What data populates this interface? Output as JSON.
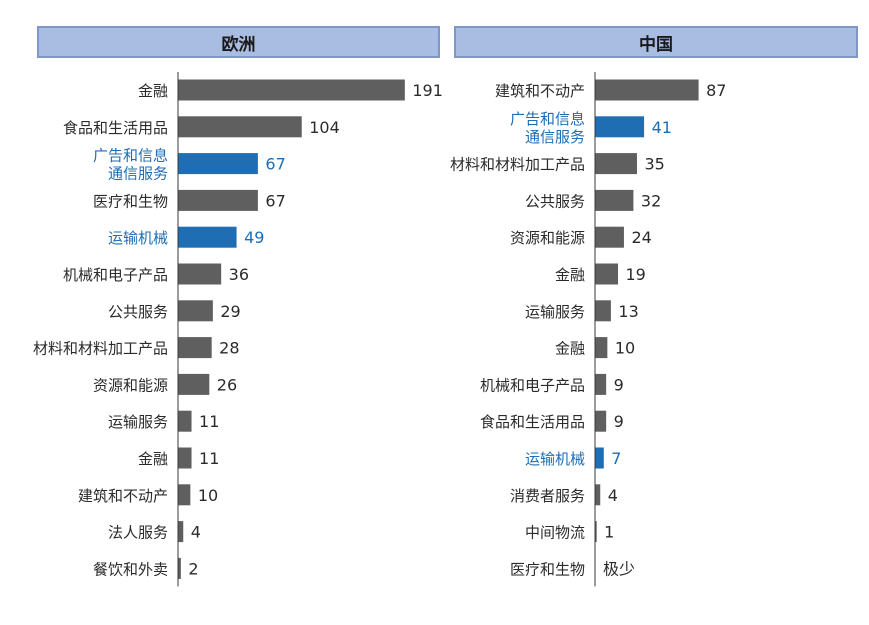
{
  "colors": {
    "bar": "#5f5f5f",
    "highlight": "#1f6db3",
    "text": "#2b2b2b",
    "header_bg": "#a9bde3",
    "header_border": "#7f97c8"
  },
  "chart_data": [
    {
      "type": "bar",
      "orientation": "horizontal",
      "title": "欧洲",
      "categories": [
        "金融",
        "食品和生活用品",
        "广告和信息\n通信服务",
        "医疗和生物",
        "运输机械",
        "机械和电子产品",
        "公共服务",
        "材料和材料加工产品",
        "资源和能源",
        "运输服务",
        "金融",
        "建筑和不动产",
        "法人服务",
        "餐饮和外卖"
      ],
      "values": [
        191,
        104,
        67,
        67,
        49,
        36,
        29,
        28,
        26,
        11,
        11,
        10,
        4,
        2
      ],
      "value_labels": [
        "191",
        "104",
        "67",
        "67",
        "49",
        "36",
        "29",
        "28",
        "26",
        "11",
        "11",
        "10",
        "4",
        "2"
      ],
      "highlight": [
        false,
        false,
        true,
        false,
        true,
        false,
        false,
        false,
        false,
        false,
        false,
        false,
        false,
        false
      ]
    },
    {
      "type": "bar",
      "orientation": "horizontal",
      "title": "中国",
      "categories": [
        "建筑和不动产",
        "广告和信息\n通信服务",
        "材料和材料加工产品",
        "公共服务",
        "资源和能源",
        "金融",
        "运输服务",
        "金融",
        "机械和电子产品",
        "食品和生活用品",
        "运输机械",
        "消费者服务",
        "中间物流",
        "医疗和生物"
      ],
      "values": [
        87,
        41,
        35,
        32,
        24,
        19,
        13,
        10,
        9,
        9,
        7,
        4,
        1,
        0
      ],
      "value_labels": [
        "87",
        "41",
        "35",
        "32",
        "24",
        "19",
        "13",
        "10",
        "9",
        "9",
        "7",
        "4",
        "1",
        "极少"
      ],
      "highlight": [
        false,
        true,
        false,
        false,
        false,
        false,
        false,
        false,
        false,
        false,
        true,
        false,
        false,
        false
      ]
    }
  ]
}
